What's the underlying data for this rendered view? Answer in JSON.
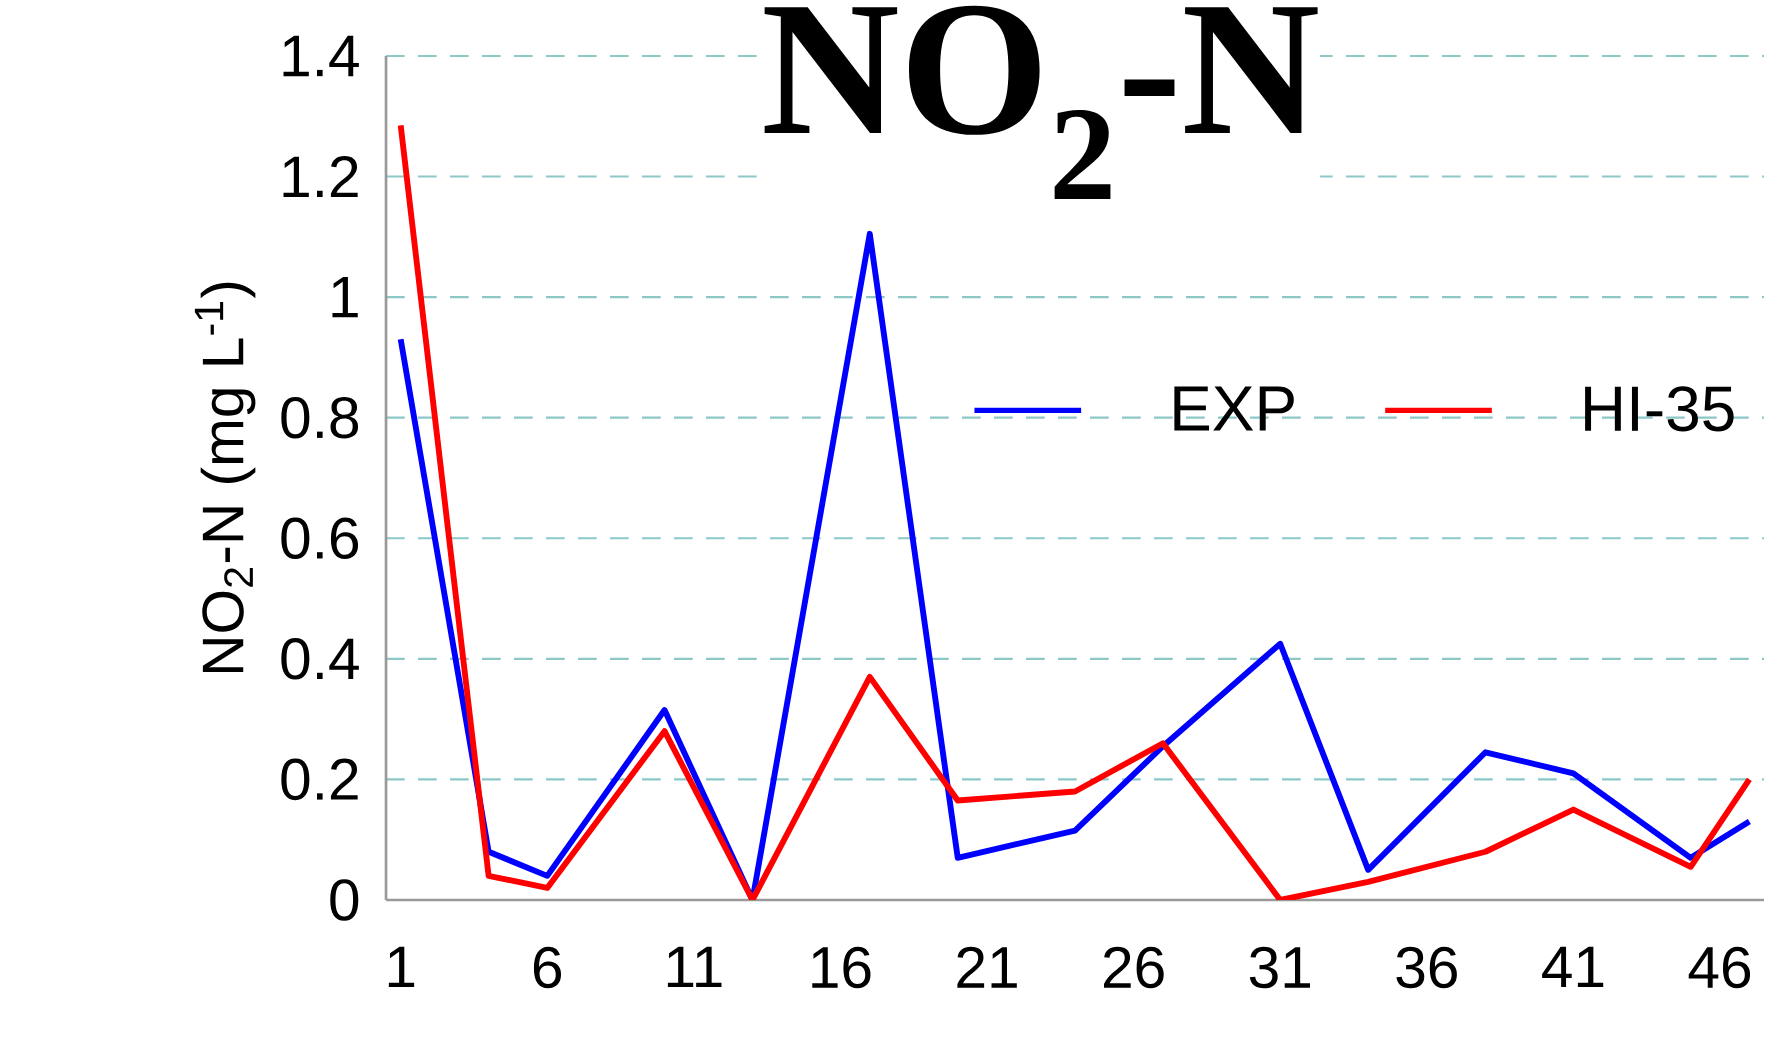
{
  "chart_data": {
    "type": "line",
    "title": "NO$_{2}$-N",
    "ylabel": "NO$_{2}$-N (mg L$^{-1}$)",
    "x": [
      1,
      4,
      6,
      10,
      13,
      17,
      20,
      24,
      27,
      31,
      34,
      38,
      41,
      45,
      47
    ],
    "series": [
      {
        "name": "EXP",
        "color": "#0000ff",
        "values": [
          0.93,
          0.08,
          0.04,
          0.315,
          0,
          1.105,
          0.07,
          0.115,
          0.255,
          0.425,
          0.05,
          0.245,
          0.21,
          0.07,
          0.13
        ]
      },
      {
        "name": "HI-35",
        "color": "#ff0000",
        "values": [
          1.285,
          0.04,
          0.02,
          0.28,
          0,
          0.37,
          0.165,
          0.18,
          0.26,
          0,
          0.03,
          0.08,
          0.15,
          0.055,
          0.2
        ]
      }
    ],
    "xlim": [
      0.5,
      47.5
    ],
    "xticks": [
      1,
      6,
      11,
      16,
      21,
      26,
      31,
      36,
      41,
      46
    ],
    "ylim": [
      0,
      1.4
    ],
    "yticks": [
      0,
      0.2,
      0.4,
      0.6,
      0.8,
      1,
      1.2,
      1.4
    ],
    "grid": "y",
    "legend": "right",
    "marker": "none",
    "line_style": "solid"
  }
}
